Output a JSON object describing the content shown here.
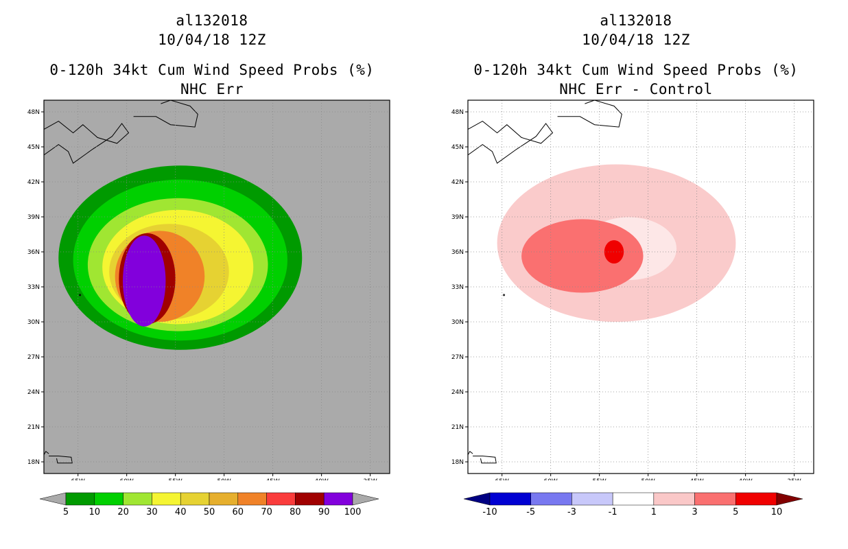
{
  "panels": [
    {
      "storm_id": "al132018",
      "datetime": "10/04/18 12Z",
      "product": "0-120h 34kt Cum Wind Speed Probs (%)",
      "subtitle": "NHC Err"
    },
    {
      "storm_id": "al132018",
      "datetime": "10/04/18 12Z",
      "product": "0-120h 34kt Cum Wind Speed Probs (%)",
      "subtitle": "NHC Err - Control"
    }
  ],
  "chart_data": [
    {
      "type": "heatmap",
      "title": "0-120h 34kt Cum Wind Speed Probs (%)",
      "subtitle": "NHC Err",
      "x_range_deg_lon": [
        -68.5,
        -33
      ],
      "y_range_deg_lat": [
        17,
        49
      ],
      "lon_ticks": [
        "65W",
        "60W",
        "55W",
        "50W",
        "45W",
        "40W",
        "35W"
      ],
      "lon_tick_values": [
        -65,
        -60,
        -55,
        -50,
        -45,
        -40,
        -35
      ],
      "lat_ticks": [
        "18N",
        "21N",
        "24N",
        "27N",
        "30N",
        "33N",
        "36N",
        "39N",
        "42N",
        "45N",
        "48N"
      ],
      "lat_tick_values": [
        18,
        21,
        24,
        27,
        30,
        33,
        36,
        39,
        42,
        45,
        48
      ],
      "grid": true,
      "colorbar": {
        "levels": [
          "5",
          "10",
          "20",
          "30",
          "40",
          "50",
          "60",
          "70",
          "80",
          "90",
          "100"
        ],
        "colors": [
          "#009a00",
          "#00d000",
          "#a0e632",
          "#f5f532",
          "#e6d232",
          "#e6af2d",
          "#f08228",
          "#fa3c3c",
          "#a00000",
          "#8200dc"
        ],
        "under_color": "#aaaaaa"
      },
      "probability_contours": [
        {
          "threshold": 5,
          "lon_span": [
            -67,
            -42
          ],
          "lat_span": [
            27.6,
            43.4
          ]
        },
        {
          "threshold": 10,
          "lon_span": [
            -65.5,
            -43.5
          ],
          "lat_span": [
            28.4,
            42.2
          ]
        },
        {
          "threshold": 20,
          "lon_span": [
            -64,
            -45.5
          ],
          "lat_span": [
            29.2,
            40.6
          ]
        },
        {
          "threshold": 30,
          "lon_span": [
            -62.5,
            -47
          ],
          "lat_span": [
            29.8,
            39.6
          ]
        },
        {
          "threshold": 40,
          "lon_span": [
            -61.8,
            -49.5
          ],
          "lat_span": [
            30.2,
            38.4
          ]
        },
        {
          "threshold": 60,
          "lon_span": [
            -61.2,
            -52
          ],
          "lat_span": [
            30.0,
            37.8
          ]
        },
        {
          "threshold": 80,
          "lon_span": [
            -60.8,
            -55
          ],
          "lat_span": [
            29.8,
            37.6
          ]
        },
        {
          "threshold": 100,
          "lon_span": [
            -60.4,
            -56
          ],
          "lat_span": [
            29.6,
            37.4
          ]
        }
      ]
    },
    {
      "type": "heatmap",
      "title": "0-120h 34kt Cum Wind Speed Probs (%)",
      "subtitle": "NHC Err - Control",
      "x_range_deg_lon": [
        -68.5,
        -33
      ],
      "y_range_deg_lat": [
        17,
        49
      ],
      "lon_ticks": [
        "65W",
        "60W",
        "55W",
        "50W",
        "45W",
        "40W",
        "35W"
      ],
      "lon_tick_values": [
        -65,
        -60,
        -55,
        -50,
        -45,
        -40,
        -35
      ],
      "lat_ticks": [
        "18N",
        "21N",
        "24N",
        "27N",
        "30N",
        "33N",
        "36N",
        "39N",
        "42N",
        "45N",
        "48N"
      ],
      "lat_tick_values": [
        18,
        21,
        24,
        27,
        30,
        33,
        36,
        39,
        42,
        45,
        48
      ],
      "grid": true,
      "colorbar": {
        "levels": [
          "-10",
          "-5",
          "-3",
          "-1",
          "1",
          "3",
          "5",
          "10"
        ],
        "colors": [
          "#0000d2",
          "#7878f0",
          "#c8c8fa",
          "#ffffff",
          "#fac8c8",
          "#fa7070",
          "#f00000"
        ],
        "under_color": "#000082",
        "over_color": "#820000"
      },
      "difference_regions": [
        {
          "level": "1 to 3",
          "color": "#fac8c8",
          "lon_span": [
            -65.5,
            -41
          ],
          "lat_span": [
            30,
            43.5
          ]
        },
        {
          "level": "3 to 5",
          "color": "#fa7070",
          "lon_span": [
            -63,
            -50.5
          ],
          "lat_span": [
            32.5,
            38.8
          ]
        },
        {
          "level": "5 to 10",
          "color": "#f00000",
          "lon_span": [
            -54.5,
            -52.5
          ],
          "lat_span": [
            35,
            37
          ]
        }
      ]
    }
  ]
}
